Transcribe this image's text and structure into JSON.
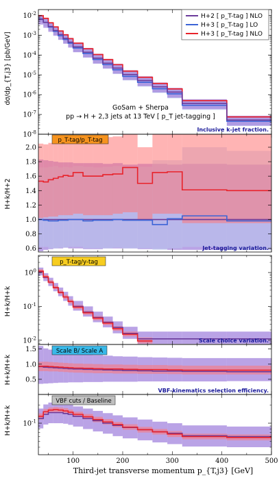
{
  "chart_data": {
    "type": "line",
    "figure": "Stacked step-histogram panels: third-jet transverse momentum distribution and ratios",
    "x_axis": {
      "label": "Third-jet transverse momentum  p_{T,j3} [GeV]",
      "range": [
        30,
        500
      ],
      "ticks": [
        100,
        200,
        300,
        400,
        500
      ],
      "bin_edges": [
        30,
        40,
        50,
        60,
        70,
        80,
        90,
        100,
        120,
        140,
        160,
        180,
        200,
        230,
        260,
        290,
        320,
        410,
        500
      ]
    },
    "legend": {
      "placement": "top-right",
      "entries": [
        {
          "label": "H+2 [ p_T-tag ] NLO",
          "color": "#6a3a9a"
        },
        {
          "label": "H+3 [ p_T-tag ] LO",
          "color": "#3a63d6"
        },
        {
          "label": "H+3 [ p_T-tag ] NLO",
          "color": "#e8222a"
        }
      ]
    },
    "colors": {
      "purple_band": "#9f7fdc",
      "purple_line": "#6a3a9a",
      "blue_band": "#b8c8ec",
      "blue_line": "#3a63d6",
      "red_band": "#ff7777",
      "red_line": "#e8222a",
      "tag_orange": "#f6931e",
      "tag_yellow": "#f7cd20",
      "tag_cyan": "#38b8e8",
      "tag_gray": "#c0c0c0"
    },
    "panels": [
      {
        "id": "main",
        "scale": "log",
        "ylim": [
          1e-08,
          0.02
        ],
        "yticks": [
          1e-08,
          1e-07,
          1e-06,
          1e-05,
          0.0001,
          0.001,
          0.01
        ],
        "ytick_labels": [
          "10^-8",
          "10^-7",
          "10^-6",
          "10^-5",
          "10^-4",
          "10^-3",
          "10^-2"
        ],
        "ylabel": "dσ/dp_{T,j3} [pb/GeV]",
        "inset_text": [
          "GoSam + Sherpa",
          "pp → H + 2,3 jets at 13 TeV  [ p_T jet-tagging ]"
        ],
        "bottom_note": "Inclusive k-jet fraction.",
        "series": [
          {
            "name": "H+3 [ p_T-tag ] LO",
            "style": "blue",
            "values": [
              0.0068,
              0.0045,
              0.0026,
              0.0016,
              0.00095,
              0.00062,
              0.0004,
              0.00023,
              0.00012,
              6e-05,
              3.3e-05,
              1.8e-05,
              8.5e-06,
              4.2e-06,
              2e-06,
              1.1e-06,
              2.9e-07,
              4.5e-08
            ],
            "band_lo": [
              0.0046,
              0.003,
              0.00175,
              0.00105,
              0.00062,
              0.0004,
              0.00026,
              0.000145,
              7.6e-05,
              3.8e-05,
              2.05e-05,
              1.1e-05,
              5.2e-06,
              2.55e-06,
              1.2e-06,
              6.5e-07,
              1.7e-07,
              2.6e-08
            ],
            "band_hi": [
              0.0105,
              0.007,
              0.0041,
              0.0025,
              0.0015,
              0.00098,
              0.00064,
              0.00037,
              0.000195,
              9.8e-05,
              5.4e-05,
              3e-05,
              1.42e-05,
              7e-06,
              3.4e-06,
              1.85e-06,
              4.9e-07,
              7.7e-08
            ]
          },
          {
            "name": "H+3 [ p_T-tag ] NLO",
            "style": "red",
            "values": [
              0.0098,
              0.0072,
              0.0043,
              0.00265,
              0.00165,
              0.00106,
              0.00068,
              0.0004,
              0.00021,
              0.000107,
              5.9e-05,
              3.3e-05,
              1.55e-05,
              7.6e-06,
              3.7e-06,
              1.95e-06,
              5e-07,
              7.5e-08
            ],
            "band_lo": [
              0.0088,
              0.0065,
              0.0039,
              0.0024,
              0.0015,
              0.00096,
              0.00061,
              0.00036,
              0.00019,
              9.6e-05,
              5.3e-05,
              2.95e-05,
              1.38e-05,
              6.8e-06,
              3.3e-06,
              1.75e-06,
              4.5e-07,
              6.7e-08
            ],
            "band_hi": [
              0.0108,
              0.0079,
              0.0047,
              0.0029,
              0.0018,
              0.00116,
              0.00074,
              0.00044,
              0.00023,
              0.000117,
              6.5e-05,
              3.6e-05,
              1.7e-05,
              8.3e-06,
              4.05e-06,
              2.15e-06,
              5.5e-07,
              8.2e-08
            ]
          },
          {
            "name": "H+2 [ p_T-tag ] NLO",
            "style": "purple",
            "values": [
              0.0064,
              0.0045,
              0.0028,
              0.00175,
              0.0011,
              0.0007,
              0.00045,
              0.00026,
              0.00014,
              7e-05,
              3.9e-05,
              2.2e-05,
              1.05e-05,
              5.2e-06,
              2.5e-06,
              1.35e-06,
              3.6e-07,
              5.2e-08
            ],
            "band_lo": [
              0.0035,
              0.0024,
              0.0015,
              0.00095,
              0.00059,
              0.000375,
              0.00024,
              0.00014,
              7.5e-05,
              3.7e-05,
              2.1e-05,
              1.15e-05,
              5.5e-06,
              2.7e-06,
              1.3e-06,
              7e-07,
              1.85e-07,
              2.7e-08
            ],
            "band_hi": [
              0.0105,
              0.0073,
              0.0046,
              0.00285,
              0.0018,
              0.00115,
              0.00074,
              0.00043,
              0.00023,
              0.000115,
              6.4e-05,
              3.6e-05,
              1.72e-05,
              8.5e-06,
              4.1e-06,
              2.2e-06,
              5.9e-07,
              8.6e-08
            ]
          }
        ]
      },
      {
        "id": "ratio1",
        "scale": "linear",
        "ylim": [
          0.55,
          2.18
        ],
        "yticks": [
          0.6,
          0.8,
          1.0,
          1.2,
          1.4,
          1.6,
          1.8,
          2.0
        ],
        "ytick_labels": [
          "0.6",
          "0.8",
          "1.0",
          "1.2",
          "1.4",
          "1.6",
          "1.8",
          "2.0"
        ],
        "ylabel": "H+k/H+2",
        "tag": "p_T-tag/p_T-tag",
        "tag_color": "orange",
        "bottom_note": "Jet-tagging variation.",
        "series": [
          {
            "name": "H+2 [ p_T-tag ] NLO",
            "style": "purple",
            "values": [
              1,
              1,
              1,
              1,
              1,
              1,
              1,
              1,
              1,
              1,
              1,
              1,
              1,
              1,
              1,
              1,
              1,
              1
            ],
            "band_lo": [
              0.56,
              0.58,
              0.59,
              0.6,
              0.6,
              0.61,
              0.6,
              0.6,
              0.59,
              0.59,
              0.6,
              0.6,
              0.6,
              0.59,
              0.59,
              0.58,
              0.58,
              0.58
            ],
            "band_hi": [
              1.83,
              1.82,
              1.81,
              1.8,
              1.79,
              1.79,
              1.79,
              1.78,
              1.78,
              1.78,
              1.77,
              1.78,
              1.76,
              1.77,
              1.77,
              1.76,
              1.77,
              1.76
            ]
          },
          {
            "name": "H+3 [ p_T-tag ] LO",
            "style": "blue",
            "values": [
              1.0,
              0.99,
              0.98,
              0.98,
              0.99,
              0.99,
              1.0,
              1.0,
              0.98,
              0.99,
              0.99,
              1.0,
              0.99,
              0.99,
              0.93,
              1.01,
              1.05,
              0.98
            ],
            "band_lo": [
              0.62,
              0.62,
              0.6,
              0.6,
              0.61,
              0.61,
              0.62,
              0.62,
              0.6,
              0.6,
              0.6,
              0.61,
              0.6,
              0.6,
              0.58,
              0.6,
              0.62,
              0.58
            ],
            "band_hi": [
              1.72,
              1.72,
              1.73,
              1.74,
              1.72,
              1.73,
              1.72,
              1.74,
              1.73,
              1.72,
              1.73,
              1.74,
              1.72,
              1.73,
              1.82,
              1.82,
              2.0,
              1.95
            ]
          },
          {
            "name": "H+3 [ p_T-tag ] NLO",
            "style": "red",
            "values": [
              1.53,
              1.52,
              1.55,
              1.57,
              1.59,
              1.61,
              1.6,
              1.65,
              1.6,
              1.6,
              1.62,
              1.63,
              1.72,
              1.5,
              1.65,
              1.66,
              1.41,
              1.4
            ],
            "band_lo": [
              1.02,
              1.03,
              1.04,
              1.04,
              1.06,
              1.06,
              1.06,
              1.08,
              1.06,
              1.06,
              1.06,
              1.08,
              1.1,
              1.0,
              1.08,
              1.08,
              0.95,
              0.95
            ],
            "band_hi": [
              2.05,
              2.04,
              2.06,
              2.08,
              2.1,
              2.12,
              2.11,
              2.16,
              2.1,
              2.1,
              2.14,
              2.15,
              2.4,
              2.0,
              2.3,
              2.3,
              2.4,
              2.4
            ]
          }
        ]
      },
      {
        "id": "ratio2",
        "scale": "log",
        "ylim": [
          0.0075,
          3.2
        ],
        "yticks": [
          0.01,
          0.1,
          1.0
        ],
        "ytick_labels": [
          "10^-2",
          "10^-1",
          "10^0"
        ],
        "ylabel": "H+k/H+k",
        "tag": "p_T-tag/y-tag",
        "tag_color": "yellow",
        "bottom_note": "Scale choice variation.",
        "series": [
          {
            "name": "H+2 [ p_T-tag ] NLO",
            "style": "purple",
            "values": [
              1.05,
              0.72,
              0.52,
              0.36,
              0.26,
              0.19,
              0.14,
              0.1,
              0.068,
              0.047,
              0.034,
              0.024,
              0.016,
              0.011,
              0.011,
              0.011,
              0.011,
              0.011
            ],
            "band_lo": [
              0.82,
              0.56,
              0.4,
              0.28,
              0.2,
              0.145,
              0.105,
              0.075,
              0.05,
              0.034,
              0.024,
              0.016,
              0.011,
              0.0078,
              0.0078,
              0.0078,
              0.0078,
              0.0078
            ],
            "band_hi": [
              1.4,
              0.96,
              0.7,
              0.49,
              0.36,
              0.27,
              0.2,
              0.145,
              0.1,
              0.07,
              0.05,
              0.036,
              0.025,
              0.018,
              0.018,
              0.018,
              0.018,
              0.018
            ]
          },
          {
            "name": "H+3 [ p_T-tag ] NLO",
            "style": "red",
            "values": [
              1.1,
              0.75,
              0.52,
              0.36,
              0.26,
              0.19,
              0.14,
              0.095,
              0.065,
              0.045,
              0.032,
              0.022,
              0.015,
              0.0095,
              null,
              null,
              null,
              null
            ],
            "band_lo": [
              0.95,
              0.66,
              0.46,
              0.32,
              0.23,
              0.165,
              0.122,
              0.083,
              0.057,
              0.039,
              0.028,
              0.019,
              0.013,
              0.008,
              null,
              null,
              null,
              null
            ],
            "band_hi": [
              1.25,
              0.86,
              0.6,
              0.41,
              0.3,
              0.22,
              0.16,
              0.11,
              0.075,
              0.052,
              0.037,
              0.026,
              0.018,
              0.012,
              null,
              null,
              null,
              null
            ]
          }
        ]
      },
      {
        "id": "ratio3",
        "scale": "linear",
        "ylim": [
          0.0,
          1.65
        ],
        "yticks": [
          0.5,
          1.0,
          1.5
        ],
        "ytick_labels": [
          "0.5",
          "1.0",
          "1.5"
        ],
        "ylabel": "H+k/H+k",
        "tag": "Scale B/ Scale A",
        "tag_color": "cyan",
        "bottom_note": "VBF-kinematics selection efficiency.",
        "series": [
          {
            "name": "H+2 [ p_T-tag ] NLO",
            "style": "purple",
            "values": [
              0.92,
              0.9,
              0.89,
              0.88,
              0.87,
              0.86,
              0.85,
              0.84,
              0.83,
              0.82,
              0.81,
              0.8,
              0.79,
              0.78,
              0.77,
              0.77,
              0.76,
              0.75
            ],
            "band_lo": [
              0.35,
              0.36,
              0.37,
              0.38,
              0.39,
              0.39,
              0.4,
              0.4,
              0.41,
              0.41,
              0.42,
              0.42,
              0.42,
              0.43,
              0.43,
              0.43,
              0.43,
              0.44
            ],
            "band_hi": [
              1.6,
              1.52,
              1.48,
              1.45,
              1.42,
              1.4,
              1.38,
              1.35,
              1.32,
              1.3,
              1.28,
              1.26,
              1.25,
              1.23,
              1.22,
              1.21,
              1.2,
              1.2
            ]
          },
          {
            "name": "H+3 [ p_T-tag ] NLO",
            "style": "red",
            "values": [
              0.93,
              0.93,
              0.92,
              0.91,
              0.9,
              0.89,
              0.88,
              0.87,
              0.86,
              0.85,
              0.84,
              0.84,
              0.83,
              0.82,
              0.82,
              0.81,
              0.8,
              0.8
            ],
            "band_lo": [
              0.77,
              0.77,
              0.76,
              0.76,
              0.75,
              0.74,
              0.73,
              0.72,
              0.71,
              0.7,
              0.7,
              0.69,
              0.69,
              0.68,
              0.68,
              0.67,
              0.66,
              0.66
            ],
            "band_hi": [
              1.08,
              1.08,
              1.07,
              1.06,
              1.05,
              1.04,
              1.03,
              1.02,
              1.01,
              1.0,
              0.99,
              0.99,
              0.98,
              0.97,
              0.97,
              0.96,
              0.95,
              0.95
            ]
          }
        ]
      },
      {
        "id": "ratio4",
        "scale": "log",
        "ylim": [
          0.03,
          0.3
        ],
        "yticks": [
          0.1
        ],
        "ytick_labels": [
          "10^-1"
        ],
        "ylabel": "H+k/H+k",
        "tag": "VBF cuts / Baseline",
        "tag_color": "gray",
        "series": [
          {
            "name": "H+2 [ p_T-tag ] NLO",
            "style": "purple",
            "values": [
              0.12,
              0.14,
              0.15,
              0.15,
              0.15,
              0.145,
              0.14,
              0.13,
              0.12,
              0.11,
              0.1,
              0.092,
              0.085,
              0.078,
              0.072,
              0.068,
              0.062,
              0.06
            ],
            "band_lo": [
              0.082,
              0.095,
              0.1,
              0.1,
              0.1,
              0.098,
              0.094,
              0.088,
              0.08,
              0.073,
              0.067,
              0.061,
              0.056,
              0.052,
              0.048,
              0.045,
              0.041,
              0.04
            ],
            "band_hi": [
              0.175,
              0.205,
              0.22,
              0.22,
              0.22,
              0.215,
              0.205,
              0.19,
              0.175,
              0.16,
              0.147,
              0.135,
              0.125,
              0.115,
              0.106,
              0.1,
              0.092,
              0.088
            ]
          },
          {
            "name": "H+3 [ p_T-tag ] NLO",
            "style": "red",
            "values": [
              0.13,
              0.155,
              0.165,
              0.168,
              0.165,
              0.16,
              0.152,
              0.14,
              0.128,
              0.115,
              0.105,
              0.095,
              0.086,
              0.078,
              0.072,
              0.066,
              0.06,
              0.058
            ],
            "band_lo": [
              0.115,
              0.14,
              0.15,
              0.152,
              0.15,
              0.145,
              0.138,
              0.127,
              0.116,
              0.104,
              0.095,
              0.086,
              0.078,
              0.07,
              0.065,
              0.059,
              0.054,
              0.052
            ],
            "band_hi": [
              0.145,
              0.172,
              0.182,
              0.185,
              0.182,
              0.177,
              0.168,
              0.155,
              0.142,
              0.128,
              0.117,
              0.105,
              0.096,
              0.087,
              0.08,
              0.074,
              0.067,
              0.065
            ]
          }
        ]
      }
    ]
  }
}
